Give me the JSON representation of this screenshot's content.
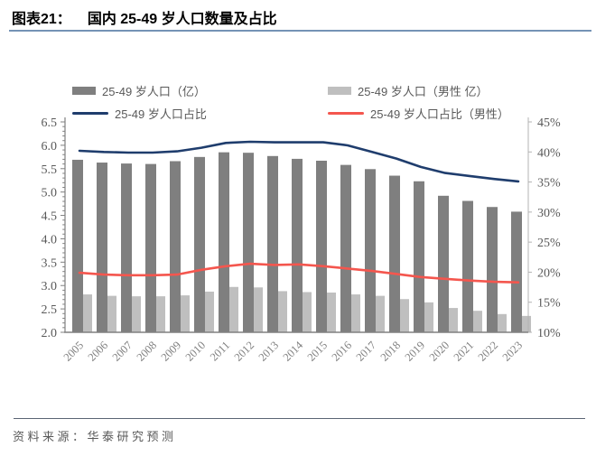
{
  "header": {
    "label": "图表21：",
    "title": "国内 25-49 岁人口数量及占比"
  },
  "legend": [
    {
      "type": "bar",
      "color": "#7F7F7F",
      "label": "25-49 岁人口（亿）"
    },
    {
      "type": "bar",
      "color": "#BFBFBF",
      "label": "25-49 岁人口（男性 亿）"
    },
    {
      "type": "line",
      "color": "#1F3D6D",
      "label": "25-49 岁人口占比"
    },
    {
      "type": "line",
      "color": "#F4564E",
      "label": "25-49 岁人口占比（男性）"
    }
  ],
  "chart_data": {
    "type": "bar+line combo (dual axis)",
    "title": "国内 25-49 岁人口数量及占比",
    "categories": [
      2005,
      2006,
      2007,
      2008,
      2009,
      2010,
      2011,
      2012,
      2013,
      2014,
      2015,
      2016,
      2017,
      2018,
      2019,
      2020,
      2021,
      2022,
      2023
    ],
    "series": [
      {
        "name": "25-49 岁人口（亿）",
        "type": "bar",
        "axis": "left",
        "color": "#7F7F7F",
        "values": [
          5.69,
          5.63,
          5.61,
          5.6,
          5.66,
          5.75,
          5.85,
          5.84,
          5.77,
          5.71,
          5.67,
          5.58,
          5.49,
          5.35,
          5.23,
          4.92,
          4.81,
          4.68,
          4.58
        ]
      },
      {
        "name": "25-49 岁人口（男性 亿）",
        "type": "bar",
        "axis": "left",
        "color": "#BFBFBF",
        "values": [
          2.81,
          2.78,
          2.77,
          2.77,
          2.79,
          2.87,
          2.97,
          2.96,
          2.88,
          2.86,
          2.85,
          2.81,
          2.78,
          2.71,
          2.64,
          2.52,
          2.46,
          2.39,
          2.35
        ]
      },
      {
        "name": "25-49 岁人口占比",
        "type": "line",
        "axis": "right",
        "color": "#1F3D6D",
        "values": [
          40.2,
          40.0,
          39.9,
          39.9,
          40.1,
          40.7,
          41.5,
          41.7,
          41.6,
          41.6,
          41.6,
          41.1,
          40.0,
          38.9,
          37.5,
          36.5,
          36.0,
          35.5,
          35.1
        ]
      },
      {
        "name": "25-49 岁人口占比（男性）",
        "type": "line",
        "axis": "right",
        "color": "#F4564E",
        "values": [
          19.9,
          19.6,
          19.5,
          19.5,
          19.6,
          20.4,
          21.0,
          21.4,
          21.2,
          21.3,
          21.0,
          20.6,
          20.2,
          19.7,
          19.2,
          18.9,
          18.6,
          18.4,
          18.3
        ]
      }
    ],
    "left_axis": {
      "min": 2.0,
      "max": 6.5,
      "step": 0.5,
      "unit": "亿"
    },
    "right_axis": {
      "min": 10,
      "max": 45,
      "step": 5,
      "unit": "%"
    },
    "grid": false,
    "legend_position": "top"
  },
  "source": {
    "label": "资料来源：",
    "text": "华泰研究预测"
  }
}
